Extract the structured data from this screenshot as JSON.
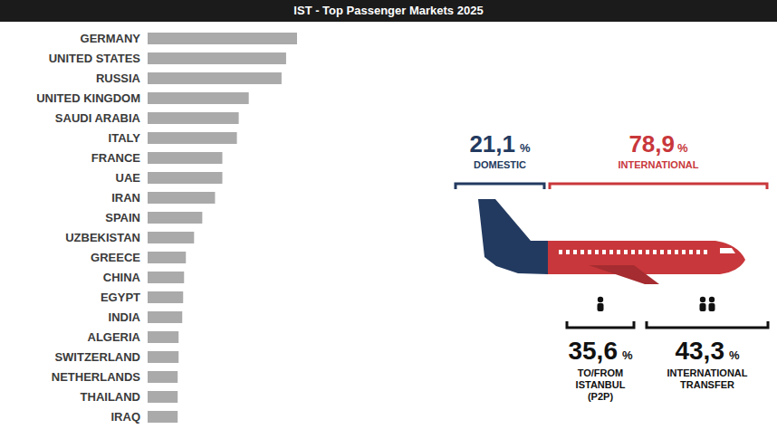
{
  "chart_data": {
    "type": "bar",
    "title": "IST - Top Passenger Markets 2025",
    "orientation": "horizontal",
    "categories": [
      "GERMANY",
      "UNITED STATES",
      "RUSSIA",
      "UNITED KINGDOM",
      "SAUDI ARABIA",
      "ITALY",
      "FRANCE",
      "UAE",
      "IRAN",
      "SPAIN",
      "UZBEKISTAN",
      "GREECE",
      "CHINA",
      "EGYPT",
      "INDIA",
      "ALGERIA",
      "SWITZERLAND",
      "NETHERLANDS",
      "THAILAND",
      "IRAQ"
    ],
    "values": [
      164,
      152,
      147,
      111,
      100,
      98,
      82,
      82,
      74,
      60,
      51,
      42,
      40,
      39,
      38,
      34,
      34,
      33,
      33,
      33
    ],
    "color": "#aaaaaa",
    "xlim": [
      0,
      164
    ],
    "tick_labels": "y",
    "grid": false
  },
  "passenger_split": {
    "unit": "%",
    "segments": [
      {
        "name": "DOMESTIC",
        "value": 21.1,
        "label": "21,1",
        "color": "#233a60"
      },
      {
        "name": "INTERNATIONAL",
        "value": 78.9,
        "label": "78,9",
        "color": "#c8373b",
        "parts": [
          {
            "name": "TO/FROM ISTANBUL (P2P)",
            "value": 35.6,
            "label": "35,6"
          },
          {
            "name": "INTERNATIONAL TRANSFER",
            "value": 43.3,
            "label": "43,3"
          }
        ]
      }
    ]
  }
}
